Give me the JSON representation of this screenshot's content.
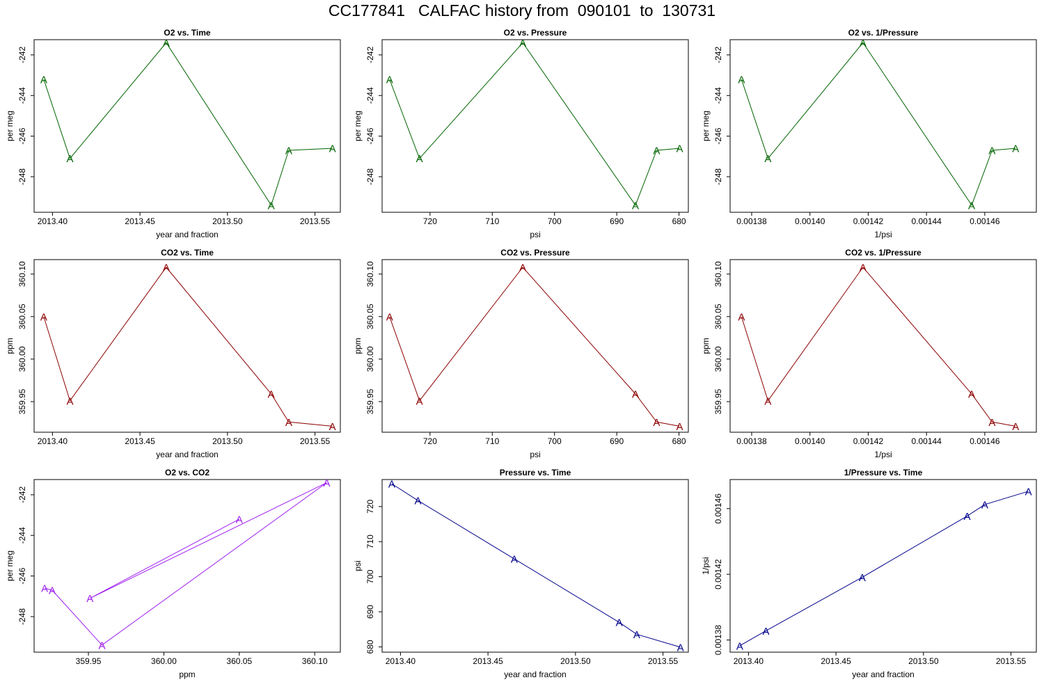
{
  "page": {
    "title": "CC177841   CALFAC history from  090101  to  130731"
  },
  "colors": {
    "o2": "#006400",
    "co2": "#8B0000",
    "o2_vs_co2": "#A020F0",
    "pressure": "#00008B"
  },
  "chart_data": [
    {
      "id": "o2-vs-time",
      "type": "line",
      "title": "O2 vs. Time",
      "xlabel": "year and fraction",
      "ylabel": "per meg",
      "color": "#006400",
      "marker": "A",
      "xlim": [
        2013.3895,
        2013.5645
      ],
      "ylim": [
        -249.75,
        -241.25
      ],
      "xticks": [
        2013.4,
        2013.45,
        2013.5,
        2013.55
      ],
      "xtick_labels": [
        "2013.40",
        "2013.45",
        "2013.50",
        "2013.55"
      ],
      "yticks": [
        -242,
        -244,
        -246,
        -248
      ],
      "ytick_labels": [
        "-242",
        "-244",
        "-246",
        "-248"
      ],
      "points": [
        {
          "x": 2013.395,
          "y": -243.2
        },
        {
          "x": 2013.41,
          "y": -247.1
        },
        {
          "x": 2013.465,
          "y": -241.4
        },
        {
          "x": 2013.525,
          "y": -249.4
        },
        {
          "x": 2013.535,
          "y": -246.7
        },
        {
          "x": 2013.56,
          "y": -246.6
        }
      ]
    },
    {
      "id": "o2-vs-pressure",
      "type": "line",
      "title": "O2 vs. Pressure",
      "xlabel": "psi",
      "ylabel": "per meg",
      "color": "#006400",
      "marker": "A",
      "xlim": [
        727.7,
        678.5
      ],
      "ylim": [
        -249.75,
        -241.25
      ],
      "xticks": [
        720,
        710,
        700,
        690,
        680
      ],
      "xtick_labels": [
        "720",
        "710",
        "700",
        "690",
        "680"
      ],
      "yticks": [
        -242,
        -244,
        -246,
        -248
      ],
      "ytick_labels": [
        "-242",
        "-244",
        "-246",
        "-248"
      ],
      "points": [
        {
          "x": 726.5,
          "y": -243.2
        },
        {
          "x": 721.7,
          "y": -247.1
        },
        {
          "x": 705.1,
          "y": -241.4
        },
        {
          "x": 687.0,
          "y": -249.4
        },
        {
          "x": 683.6,
          "y": -246.7
        },
        {
          "x": 679.9,
          "y": -246.6
        }
      ]
    },
    {
      "id": "o2-vs-inv-pressure",
      "type": "line",
      "title": "O2 vs. 1/Pressure",
      "xlabel": "1/psi",
      "ylabel": "per meg",
      "color": "#006400",
      "marker": "A",
      "xlim": [
        0.0013726,
        0.0014777
      ],
      "ylim": [
        -249.75,
        -241.25
      ],
      "xticks": [
        0.00138,
        0.0014,
        0.00142,
        0.00144,
        0.00146
      ],
      "xtick_labels": [
        "0.00138",
        "0.00140",
        "0.00142",
        "0.00144",
        "0.00146"
      ],
      "yticks": [
        -242,
        -244,
        -246,
        -248
      ],
      "ytick_labels": [
        "-242",
        "-244",
        "-246",
        "-248"
      ],
      "points": [
        {
          "x": 0.0013765,
          "y": -243.2
        },
        {
          "x": 0.0013856,
          "y": -247.1
        },
        {
          "x": 0.0014182,
          "y": -241.4
        },
        {
          "x": 0.0014555,
          "y": -249.4
        },
        {
          "x": 0.0014625,
          "y": -246.7
        },
        {
          "x": 0.0014706,
          "y": -246.6
        }
      ]
    },
    {
      "id": "co2-vs-time",
      "type": "line",
      "title": "CO2 vs. Time",
      "xlabel": "year and fraction",
      "ylabel": "ppm",
      "color": "#8B0000",
      "marker": "A",
      "xlim": [
        2013.3895,
        2013.5645
      ],
      "ylim": [
        359.914,
        360.117
      ],
      "xticks": [
        2013.4,
        2013.45,
        2013.5,
        2013.55
      ],
      "xtick_labels": [
        "2013.40",
        "2013.45",
        "2013.50",
        "2013.55"
      ],
      "yticks": [
        359.95,
        360.0,
        360.05,
        360.1
      ],
      "ytick_labels": [
        "359.95",
        "360.00",
        "360.05",
        "360.10"
      ],
      "points": [
        {
          "x": 2013.395,
          "y": 360.05
        },
        {
          "x": 2013.41,
          "y": 359.951
        },
        {
          "x": 2013.465,
          "y": 360.108
        },
        {
          "x": 2013.525,
          "y": 359.959
        },
        {
          "x": 2013.535,
          "y": 359.926
        },
        {
          "x": 2013.56,
          "y": 359.921
        }
      ]
    },
    {
      "id": "co2-vs-pressure",
      "type": "line",
      "title": "CO2 vs. Pressure",
      "xlabel": "psi",
      "ylabel": "ppm",
      "color": "#8B0000",
      "marker": "A",
      "xlim": [
        727.7,
        678.5
      ],
      "ylim": [
        359.914,
        360.117
      ],
      "xticks": [
        720,
        710,
        700,
        690,
        680
      ],
      "xtick_labels": [
        "720",
        "710",
        "700",
        "690",
        "680"
      ],
      "yticks": [
        359.95,
        360.0,
        360.05,
        360.1
      ],
      "ytick_labels": [
        "359.95",
        "360.00",
        "360.05",
        "360.10"
      ],
      "points": [
        {
          "x": 726.5,
          "y": 360.05
        },
        {
          "x": 721.7,
          "y": 359.951
        },
        {
          "x": 705.1,
          "y": 360.108
        },
        {
          "x": 687.0,
          "y": 359.959
        },
        {
          "x": 683.6,
          "y": 359.926
        },
        {
          "x": 679.9,
          "y": 359.921
        }
      ]
    },
    {
      "id": "co2-vs-inv-pressure",
      "type": "line",
      "title": "CO2 vs. 1/Pressure",
      "xlabel": "1/psi",
      "ylabel": "ppm",
      "color": "#8B0000",
      "marker": "A",
      "xlim": [
        0.0013726,
        0.0014777
      ],
      "ylim": [
        359.914,
        360.117
      ],
      "xticks": [
        0.00138,
        0.0014,
        0.00142,
        0.00144,
        0.00146
      ],
      "xtick_labels": [
        "0.00138",
        "0.00140",
        "0.00142",
        "0.00144",
        "0.00146"
      ],
      "yticks": [
        359.95,
        360.0,
        360.05,
        360.1
      ],
      "ytick_labels": [
        "359.95",
        "360.00",
        "360.05",
        "360.10"
      ],
      "points": [
        {
          "x": 0.0013765,
          "y": 360.05
        },
        {
          "x": 0.0013856,
          "y": 359.951
        },
        {
          "x": 0.0014182,
          "y": 360.108
        },
        {
          "x": 0.0014555,
          "y": 359.959
        },
        {
          "x": 0.0014625,
          "y": 359.926
        },
        {
          "x": 0.0014706,
          "y": 359.921
        }
      ]
    },
    {
      "id": "o2-vs-co2",
      "type": "line",
      "title": "O2 vs. CO2",
      "xlabel": "ppm",
      "ylabel": "per meg",
      "color": "#A020F0",
      "marker": "A",
      "xlim": [
        359.914,
        360.117
      ],
      "ylim": [
        -249.75,
        -241.25
      ],
      "xticks": [
        359.95,
        360.0,
        360.05,
        360.1
      ],
      "xtick_labels": [
        "359.95",
        "360.00",
        "360.05",
        "360.10"
      ],
      "yticks": [
        -242,
        -244,
        -246,
        -248
      ],
      "ytick_labels": [
        "-242",
        "-244",
        "-246",
        "-248"
      ],
      "points": [
        {
          "x": 360.05,
          "y": -243.2
        },
        {
          "x": 359.951,
          "y": -247.1
        },
        {
          "x": 360.108,
          "y": -241.4
        },
        {
          "x": 359.959,
          "y": -249.4
        },
        {
          "x": 359.926,
          "y": -246.7
        },
        {
          "x": 359.921,
          "y": -246.6
        }
      ]
    },
    {
      "id": "pressure-vs-time",
      "type": "line",
      "title": "Pressure vs. Time",
      "xlabel": "year and fraction",
      "ylabel": "psi",
      "color": "#00008B",
      "marker": "A",
      "xlim": [
        2013.3895,
        2013.5645
      ],
      "ylim": [
        678.5,
        727.7
      ],
      "xticks": [
        2013.4,
        2013.45,
        2013.5,
        2013.55
      ],
      "xtick_labels": [
        "2013.40",
        "2013.45",
        "2013.50",
        "2013.55"
      ],
      "yticks": [
        680,
        690,
        700,
        710,
        720
      ],
      "ytick_labels": [
        "680",
        "690",
        "700",
        "710",
        "720"
      ],
      "points": [
        {
          "x": 2013.395,
          "y": 726.5
        },
        {
          "x": 2013.41,
          "y": 721.7
        },
        {
          "x": 2013.465,
          "y": 705.1
        },
        {
          "x": 2013.525,
          "y": 687.0
        },
        {
          "x": 2013.535,
          "y": 683.6
        },
        {
          "x": 2013.56,
          "y": 679.9
        }
      ]
    },
    {
      "id": "inv-pressure-vs-time",
      "type": "line",
      "title": "1/Pressure vs. Time",
      "xlabel": "year and fraction",
      "ylabel": "1/psi",
      "color": "#00008B",
      "marker": "A",
      "xlim": [
        2013.3895,
        2013.5645
      ],
      "ylim": [
        0.0013726,
        0.0014777
      ],
      "xticks": [
        2013.4,
        2013.45,
        2013.5,
        2013.55
      ],
      "xtick_labels": [
        "2013.40",
        "2013.45",
        "2013.50",
        "2013.55"
      ],
      "yticks": [
        0.00138,
        0.00142,
        0.00146
      ],
      "ytick_labels": [
        "0.00138",
        "0.00142",
        "0.00146"
      ],
      "points": [
        {
          "x": 2013.395,
          "y": 0.0013765
        },
        {
          "x": 2013.41,
          "y": 0.0013856
        },
        {
          "x": 2013.465,
          "y": 0.0014182
        },
        {
          "x": 2013.525,
          "y": 0.0014555
        },
        {
          "x": 2013.535,
          "y": 0.0014625
        },
        {
          "x": 2013.56,
          "y": 0.0014706
        }
      ]
    }
  ]
}
